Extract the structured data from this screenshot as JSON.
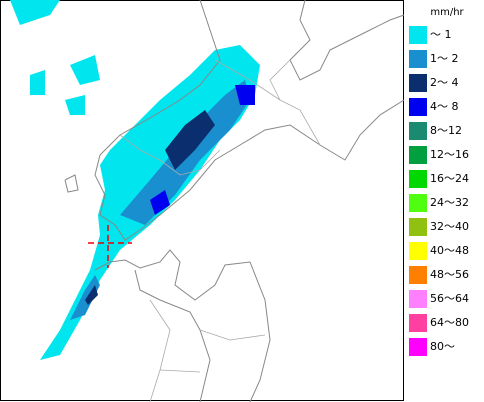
{
  "legend": {
    "unit": "mm/hr",
    "items": [
      {
        "label": "～ 1",
        "color": "#00e5ee"
      },
      {
        "label": "1～ 2",
        "color": "#1a8fd0"
      },
      {
        "label": "2～ 4",
        "color": "#0b2f6e"
      },
      {
        "label": "4～ 8",
        "color": "#0000f0"
      },
      {
        "label": "8～12",
        "color": "#1a8a70"
      },
      {
        "label": "12～16",
        "color": "#00a040"
      },
      {
        "label": "16～24",
        "color": "#00d800"
      },
      {
        "label": "24～32",
        "color": "#50ff10"
      },
      {
        "label": "32～40",
        "color": "#90c010"
      },
      {
        "label": "40～48",
        "color": "#ffff00"
      },
      {
        "label": "48～56",
        "color": "#ff8000"
      },
      {
        "label": "56～64",
        "color": "#ff80ff"
      },
      {
        "label": "64～80",
        "color": "#ff40a0"
      },
      {
        "label": "80～",
        "color": "#ff00ff"
      }
    ]
  }
}
